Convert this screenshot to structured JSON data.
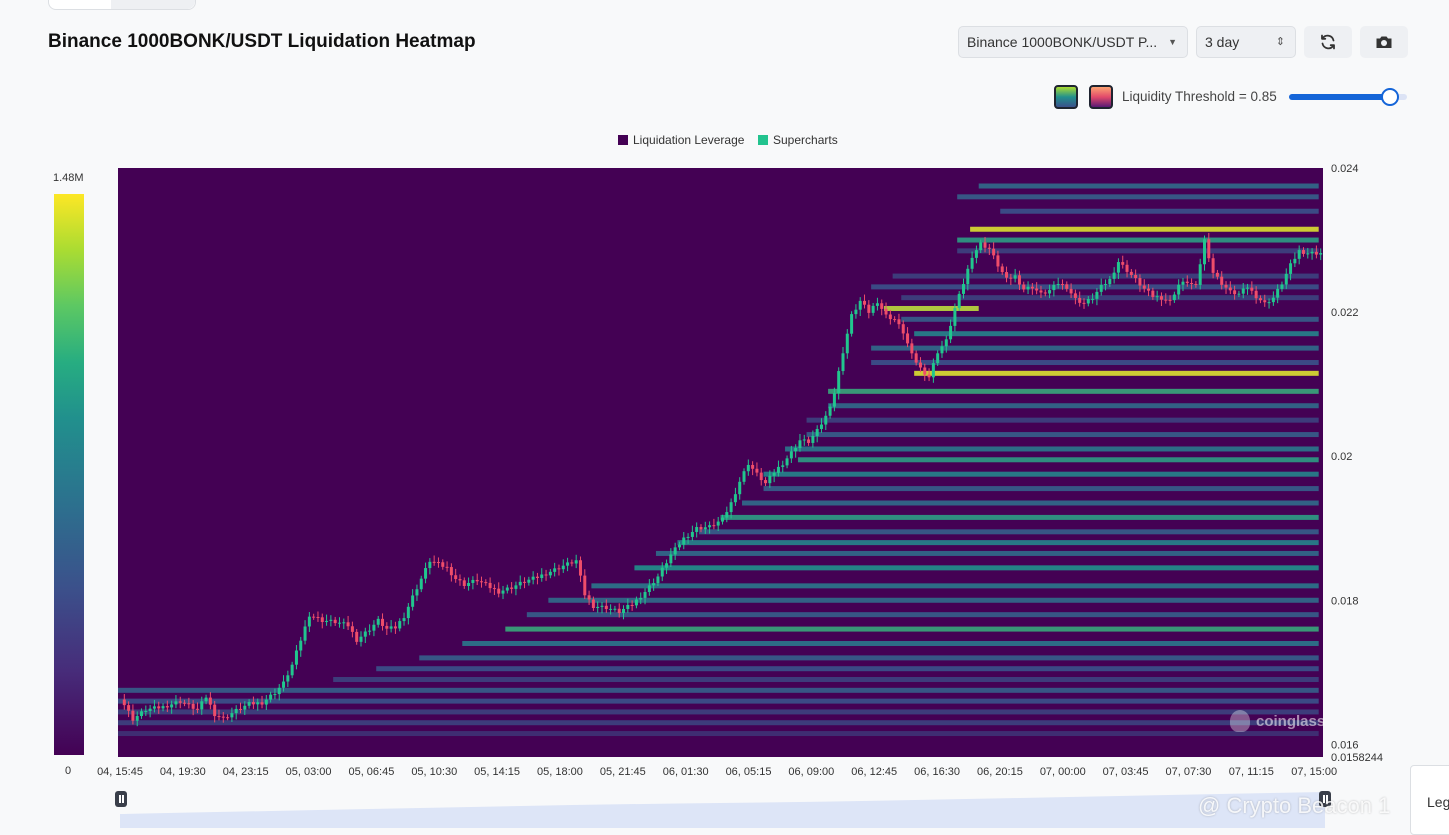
{
  "header": {
    "title": "Binance 1000BONK/USDT Liquidation Heatmap",
    "pair_select": "Binance 1000BONK/USDT P...",
    "range_select": "3 day",
    "refresh_icon": "refresh-icon",
    "camera_icon": "camera-icon"
  },
  "controls": {
    "threshold_label": "Liquidity Threshold = 0.85",
    "threshold_value": 0.85,
    "palette_viridis_icon": "viridis-palette-icon",
    "palette_magma_icon": "magma-palette-icon"
  },
  "colors": {
    "background": "#440154",
    "liquidation_leverage": "#440154",
    "supercharts": "#22c38e",
    "candle_up": "#21c68e",
    "candle_down": "#ef4d6a",
    "accent": "#1565d8"
  },
  "legend_buttons": {
    "label": "Leg"
  },
  "watermark": {
    "chart": "coinglass",
    "footer": "@ Crypto Beacon 1"
  },
  "chart_data": {
    "type": "heatmap",
    "title": "Binance 1000BONK/USDT Liquidation Heatmap",
    "legend": [
      "Liquidation Leverage",
      "Supercharts"
    ],
    "legend_placement": "top-center",
    "x_ticks": [
      "04, 15:45",
      "04, 19:30",
      "04, 23:15",
      "05, 03:00",
      "05, 06:45",
      "05, 10:30",
      "05, 14:15",
      "05, 18:00",
      "05, 21:45",
      "06, 01:30",
      "06, 05:15",
      "06, 09:00",
      "06, 12:45",
      "06, 16:30",
      "06, 20:15",
      "07, 00:00",
      "07, 03:45",
      "07, 07:30",
      "07, 11:15",
      "07, 15:00"
    ],
    "y_ticks": [
      "0.024",
      "0.022",
      "0.02",
      "0.018",
      "0.016",
      "0.0158244"
    ],
    "y_tick_values": [
      0.024,
      0.022,
      0.02,
      0.018,
      0.016,
      0.0158244
    ],
    "ylim": [
      0.0158244,
      0.024
    ],
    "colorbar": {
      "min_label": "0",
      "max_label": "1.48M",
      "min": 0,
      "max": 1480000
    },
    "price_path": [
      [
        0,
        0.01665
      ],
      [
        3,
        0.01635
      ],
      [
        6,
        0.01648
      ],
      [
        10,
        0.01652
      ],
      [
        14,
        0.0166
      ],
      [
        18,
        0.01648
      ],
      [
        20,
        0.01666
      ],
      [
        22,
        0.01642
      ],
      [
        24,
        0.01636
      ],
      [
        27,
        0.01647
      ],
      [
        30,
        0.01656
      ],
      [
        33,
        0.01658
      ],
      [
        36,
        0.01672
      ],
      [
        38,
        0.01685
      ],
      [
        40,
        0.0171
      ],
      [
        42,
        0.01745
      ],
      [
        44,
        0.0178
      ],
      [
        47,
        0.01772
      ],
      [
        50,
        0.0177
      ],
      [
        53,
        0.01765
      ],
      [
        55,
        0.01745
      ],
      [
        58,
        0.0176
      ],
      [
        60,
        0.01772
      ],
      [
        62,
        0.0176
      ],
      [
        64,
        0.01762
      ],
      [
        66,
        0.01778
      ],
      [
        68,
        0.01805
      ],
      [
        70,
        0.0183
      ],
      [
        72,
        0.01855
      ],
      [
        74,
        0.0185
      ],
      [
        76,
        0.01845
      ],
      [
        78,
        0.0183
      ],
      [
        80,
        0.01822
      ],
      [
        83,
        0.01828
      ],
      [
        86,
        0.01818
      ],
      [
        88,
        0.01812
      ],
      [
        91,
        0.01818
      ],
      [
        94,
        0.01826
      ],
      [
        97,
        0.01832
      ],
      [
        100,
        0.0184
      ],
      [
        103,
        0.01848
      ],
      [
        106,
        0.01855
      ],
      [
        108,
        0.01808
      ],
      [
        110,
        0.01792
      ],
      [
        113,
        0.0179
      ],
      [
        116,
        0.01784
      ],
      [
        119,
        0.01794
      ],
      [
        122,
        0.01812
      ],
      [
        125,
        0.01833
      ],
      [
        128,
        0.01863
      ],
      [
        131,
        0.01886
      ],
      [
        134,
        0.019
      ],
      [
        137,
        0.01902
      ],
      [
        140,
        0.01912
      ],
      [
        142,
        0.01935
      ],
      [
        144,
        0.01965
      ],
      [
        146,
        0.0199
      ],
      [
        148,
        0.01975
      ],
      [
        150,
        0.01962
      ],
      [
        152,
        0.01978
      ],
      [
        154,
        0.0199
      ],
      [
        156,
        0.02005
      ],
      [
        158,
        0.02022
      ],
      [
        160,
        0.0202
      ],
      [
        162,
        0.02035
      ],
      [
        164,
        0.02055
      ],
      [
        166,
        0.02088
      ],
      [
        168,
        0.02145
      ],
      [
        170,
        0.02195
      ],
      [
        172,
        0.02215
      ],
      [
        174,
        0.022
      ],
      [
        176,
        0.02215
      ],
      [
        178,
        0.02195
      ],
      [
        180,
        0.0219
      ],
      [
        182,
        0.02172
      ],
      [
        184,
        0.0214
      ],
      [
        186,
        0.02122
      ],
      [
        188,
        0.0211
      ],
      [
        190,
        0.02145
      ],
      [
        192,
        0.0216
      ],
      [
        194,
        0.02205
      ],
      [
        196,
        0.0224
      ],
      [
        198,
        0.02278
      ],
      [
        200,
        0.02295
      ],
      [
        202,
        0.02288
      ],
      [
        204,
        0.02265
      ],
      [
        206,
        0.02245
      ],
      [
        208,
        0.0225
      ],
      [
        210,
        0.02232
      ],
      [
        212,
        0.02235
      ],
      [
        214,
        0.02225
      ],
      [
        216,
        0.0223
      ],
      [
        218,
        0.0224
      ],
      [
        220,
        0.02235
      ],
      [
        222,
        0.02218
      ],
      [
        224,
        0.02212
      ],
      [
        226,
        0.0222
      ],
      [
        228,
        0.02235
      ],
      [
        230,
        0.02245
      ],
      [
        232,
        0.0227
      ],
      [
        234,
        0.02258
      ],
      [
        236,
        0.02245
      ],
      [
        238,
        0.02232
      ],
      [
        240,
        0.02222
      ],
      [
        242,
        0.0222
      ],
      [
        244,
        0.02215
      ],
      [
        246,
        0.02238
      ],
      [
        248,
        0.02242
      ],
      [
        250,
        0.02235
      ],
      [
        252,
        0.023
      ],
      [
        254,
        0.02255
      ],
      [
        256,
        0.0224
      ],
      [
        258,
        0.02228
      ],
      [
        260,
        0.02225
      ],
      [
        262,
        0.02235
      ],
      [
        264,
        0.02222
      ],
      [
        266,
        0.02212
      ],
      [
        268,
        0.0222
      ],
      [
        270,
        0.0224
      ],
      [
        272,
        0.02265
      ],
      [
        274,
        0.02285
      ],
      [
        276,
        0.02282
      ]
    ],
    "bands": [
      {
        "y": 0.02375,
        "from": 200,
        "to": 279,
        "v": 0.35
      },
      {
        "y": 0.0236,
        "from": 195,
        "to": 279,
        "v": 0.3
      },
      {
        "y": 0.0234,
        "from": 205,
        "to": 279,
        "v": 0.25
      },
      {
        "y": 0.02315,
        "from": 198,
        "to": 279,
        "v": 0.95
      },
      {
        "y": 0.023,
        "from": 195,
        "to": 279,
        "v": 0.55
      },
      {
        "y": 0.02285,
        "from": 195,
        "to": 279,
        "v": 0.2
      },
      {
        "y": 0.0225,
        "from": 180,
        "to": 279,
        "v": 0.2
      },
      {
        "y": 0.02235,
        "from": 175,
        "to": 279,
        "v": 0.25
      },
      {
        "y": 0.0222,
        "from": 182,
        "to": 279,
        "v": 0.2
      },
      {
        "y": 0.02205,
        "from": 178,
        "to": 200,
        "v": 0.9
      },
      {
        "y": 0.0219,
        "from": 182,
        "to": 279,
        "v": 0.3
      },
      {
        "y": 0.0217,
        "from": 185,
        "to": 279,
        "v": 0.45
      },
      {
        "y": 0.0215,
        "from": 175,
        "to": 279,
        "v": 0.35
      },
      {
        "y": 0.0213,
        "from": 175,
        "to": 279,
        "v": 0.25
      },
      {
        "y": 0.02115,
        "from": 185,
        "to": 279,
        "v": 0.95
      },
      {
        "y": 0.0209,
        "from": 165,
        "to": 279,
        "v": 0.6
      },
      {
        "y": 0.0207,
        "from": 165,
        "to": 279,
        "v": 0.35
      },
      {
        "y": 0.0205,
        "from": 160,
        "to": 279,
        "v": 0.2
      },
      {
        "y": 0.0203,
        "from": 160,
        "to": 279,
        "v": 0.3
      },
      {
        "y": 0.0201,
        "from": 155,
        "to": 279,
        "v": 0.4
      },
      {
        "y": 0.01995,
        "from": 158,
        "to": 279,
        "v": 0.55
      },
      {
        "y": 0.01975,
        "from": 150,
        "to": 279,
        "v": 0.45
      },
      {
        "y": 0.01955,
        "from": 150,
        "to": 279,
        "v": 0.3
      },
      {
        "y": 0.01935,
        "from": 145,
        "to": 279,
        "v": 0.35
      },
      {
        "y": 0.01915,
        "from": 140,
        "to": 279,
        "v": 0.55
      },
      {
        "y": 0.01895,
        "from": 135,
        "to": 279,
        "v": 0.3
      },
      {
        "y": 0.0188,
        "from": 130,
        "to": 279,
        "v": 0.45
      },
      {
        "y": 0.01865,
        "from": 125,
        "to": 279,
        "v": 0.35
      },
      {
        "y": 0.01845,
        "from": 120,
        "to": 279,
        "v": 0.5
      },
      {
        "y": 0.0182,
        "from": 110,
        "to": 279,
        "v": 0.4
      },
      {
        "y": 0.018,
        "from": 100,
        "to": 279,
        "v": 0.35
      },
      {
        "y": 0.0178,
        "from": 95,
        "to": 279,
        "v": 0.3
      },
      {
        "y": 0.0176,
        "from": 90,
        "to": 279,
        "v": 0.6
      },
      {
        "y": 0.0174,
        "from": 80,
        "to": 279,
        "v": 0.4
      },
      {
        "y": 0.0172,
        "from": 70,
        "to": 279,
        "v": 0.3
      },
      {
        "y": 0.01705,
        "from": 60,
        "to": 279,
        "v": 0.25
      },
      {
        "y": 0.0169,
        "from": 50,
        "to": 279,
        "v": 0.2
      },
      {
        "y": 0.01675,
        "from": 0,
        "to": 279,
        "v": 0.3
      },
      {
        "y": 0.0166,
        "from": 0,
        "to": 279,
        "v": 0.25
      },
      {
        "y": 0.01645,
        "from": 0,
        "to": 279,
        "v": 0.2
      },
      {
        "y": 0.0163,
        "from": 0,
        "to": 279,
        "v": 0.2
      },
      {
        "y": 0.01615,
        "from": 0,
        "to": 279,
        "v": 0.15
      }
    ]
  }
}
